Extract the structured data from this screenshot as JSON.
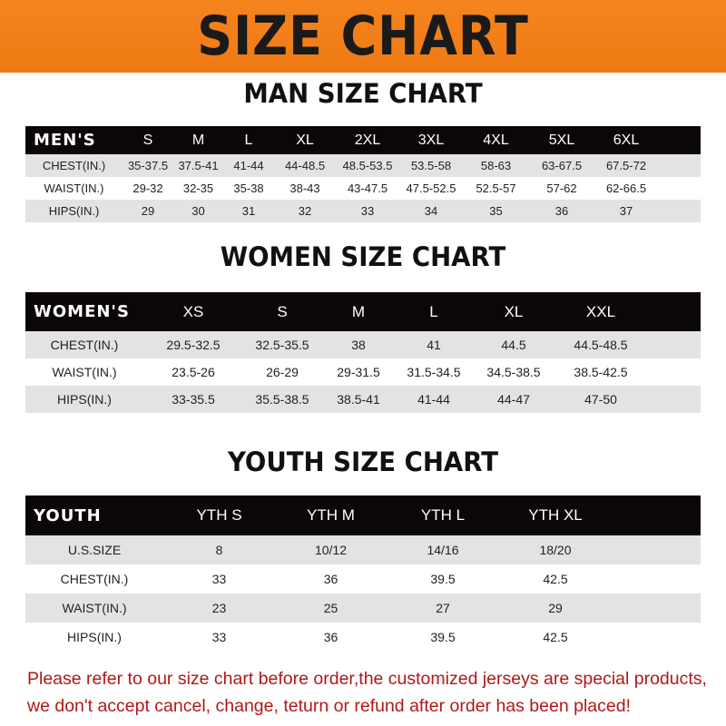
{
  "banner": {
    "title": "SIZE CHART"
  },
  "men": {
    "title": "MAN SIZE CHART",
    "header": [
      "MEN'S",
      "S",
      "M",
      "L",
      "XL",
      "2XL",
      "3XL",
      "4XL",
      "5XL",
      "6XL"
    ],
    "rows": [
      [
        "CHEST(IN.)",
        "35-37.5",
        "37.5-41",
        "41-44",
        "44-48.5",
        "48.5-53.5",
        "53.5-58",
        "58-63",
        "63-67.5",
        "67.5-72"
      ],
      [
        "WAIST(IN.)",
        "29-32",
        "32-35",
        "35-38",
        "38-43",
        "43-47.5",
        "47.5-52.5",
        "52.5-57",
        "57-62",
        "62-66.5"
      ],
      [
        "HIPS(IN.)",
        "29",
        "30",
        "31",
        "32",
        "33",
        "34",
        "35",
        "36",
        "37"
      ]
    ]
  },
  "women": {
    "title": "WOMEN SIZE CHART",
    "header": [
      "WOMEN'S",
      "XS",
      "S",
      "M",
      "L",
      "XL",
      "XXL"
    ],
    "rows": [
      [
        "CHEST(IN.)",
        "29.5-32.5",
        "32.5-35.5",
        "38",
        "41",
        "44.5",
        "44.5-48.5"
      ],
      [
        "WAIST(IN.)",
        "23.5-26",
        "26-29",
        "29-31.5",
        "31.5-34.5",
        "34.5-38.5",
        "38.5-42.5"
      ],
      [
        "HIPS(IN.)",
        "33-35.5",
        "35.5-38.5",
        "38.5-41",
        "41-44",
        "44-47",
        "47-50"
      ]
    ]
  },
  "youth": {
    "title": "YOUTH SIZE CHART",
    "header": [
      "YOUTH",
      "YTH S",
      "YTH M",
      "YTH L",
      "YTH XL"
    ],
    "rows": [
      [
        "U.S.SIZE",
        "8",
        "10/12",
        "14/16",
        "18/20"
      ],
      [
        "CHEST(IN.)",
        "33",
        "36",
        "39.5",
        "42.5"
      ],
      [
        "WAIST(IN.)",
        "23",
        "25",
        "27",
        "29"
      ],
      [
        "HIPS(IN.)",
        "33",
        "36",
        "39.5",
        "42.5"
      ]
    ]
  },
  "note": {
    "line1": "Please refer to our size chart before order,the customized jerseys are special products,",
    "line2": "we don't accept cancel, change, teturn or refund after order has been placed!"
  },
  "colors": {
    "banner": "#f6841f",
    "header_row": "#0c0707",
    "note": "#b01818"
  }
}
